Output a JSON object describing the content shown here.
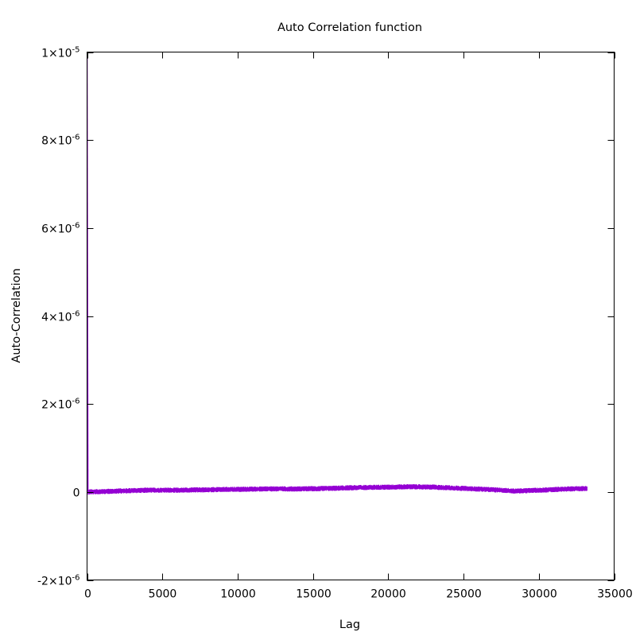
{
  "chart_data": {
    "type": "line",
    "title": "Auto Correlation function",
    "xlabel": "Lag",
    "ylabel": "Auto-Correlation",
    "xlim": [
      0,
      35000
    ],
    "ylim": [
      -2e-06,
      1e-05
    ],
    "x_ticks": [
      {
        "value": 0,
        "label": "0"
      },
      {
        "value": 5000,
        "label": "5000"
      },
      {
        "value": 10000,
        "label": "10000"
      },
      {
        "value": 15000,
        "label": "15000"
      },
      {
        "value": 20000,
        "label": "20000"
      },
      {
        "value": 25000,
        "label": "25000"
      },
      {
        "value": 30000,
        "label": "30000"
      },
      {
        "value": 35000,
        "label": "35000"
      }
    ],
    "y_ticks": [
      {
        "value": -2e-06,
        "mantissa": "-2",
        "exponent": "-6"
      },
      {
        "value": 0,
        "mantissa": "0",
        "exponent": ""
      },
      {
        "value": 2e-06,
        "mantissa": "2",
        "exponent": "-6"
      },
      {
        "value": 4e-06,
        "mantissa": "4",
        "exponent": "-6"
      },
      {
        "value": 6e-06,
        "mantissa": "6",
        "exponent": "-6"
      },
      {
        "value": 8e-06,
        "mantissa": "8",
        "exponent": "-6"
      },
      {
        "value": 1e-05,
        "mantissa": "1",
        "exponent": "-5"
      }
    ],
    "grid": false,
    "legend": "none",
    "series": [
      {
        "color": "#9400d3",
        "initial_spike": {
          "x": [
            0,
            0,
            60
          ],
          "y": [
            1e-05,
            1e-05,
            3e-08
          ]
        },
        "baseline": {
          "x": [
            0,
            2000,
            4000,
            6000,
            8000,
            10000,
            12000,
            14000,
            16000,
            18000,
            20000,
            21500,
            23000,
            25000,
            27000,
            28500,
            30000,
            32000,
            33200
          ],
          "y": [
            0.0,
            2e-08,
            4e-08,
            4e-08,
            5e-08,
            6e-08,
            7e-08,
            7e-08,
            8e-08,
            1e-07,
            1.1e-07,
            1.2e-07,
            1.1e-07,
            8e-08,
            5e-08,
            2e-08,
            4e-08,
            7e-08,
            8e-08
          ]
        },
        "noise_amplitude": 6e-08
      }
    ]
  }
}
